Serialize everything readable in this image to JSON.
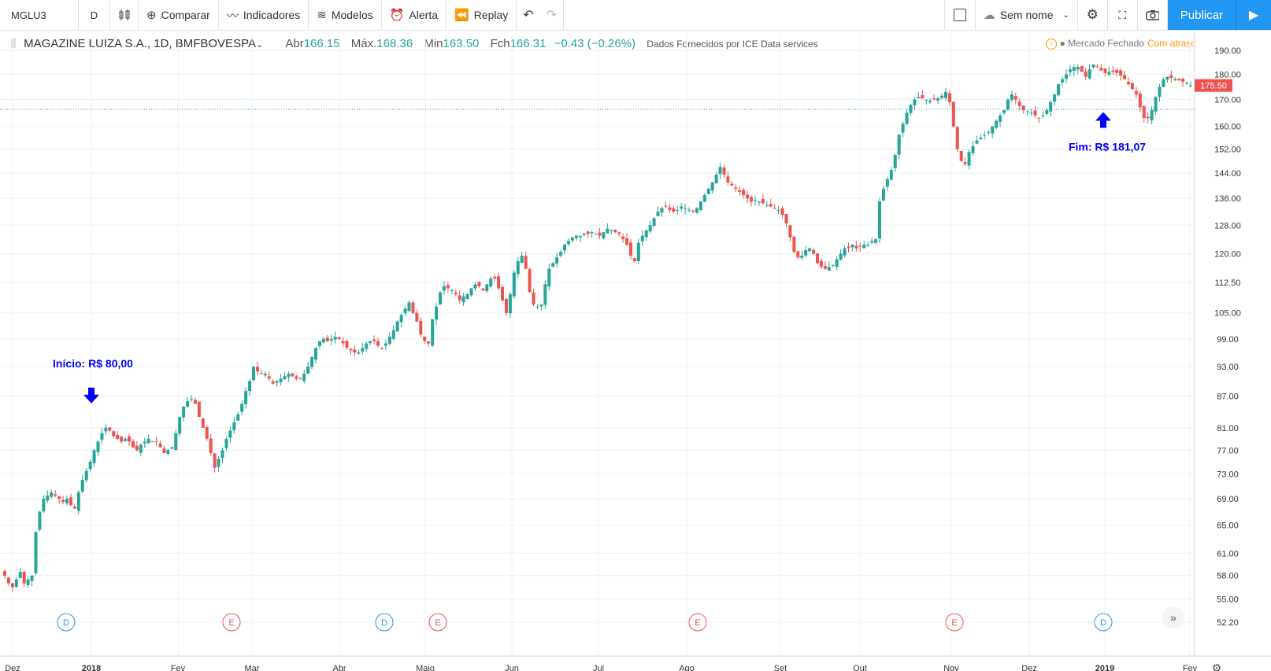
{
  "toolbar": {
    "symbol": "MGLU3",
    "interval": "D",
    "compare": "Comparar",
    "indicators": "Indicadores",
    "templates": "Modelos",
    "alert": "Alerta",
    "replay": "Replay",
    "layout_name": "Sem nome",
    "publish": "Publicar"
  },
  "legend": {
    "title": "MAGAZINE LUIZA S.A., 1D, BMFBOVESPA",
    "open_label": "Abr",
    "open": "166.15",
    "high_label": "Máx.",
    "high": "168.36",
    "low_label": "Min",
    "low": "163.50",
    "close_label": "Fch",
    "close": "166.31",
    "change": "−0.43 (−0.26%)",
    "source": "Dados Fornecidos por ICE Data services"
  },
  "status": {
    "market": "Mercado Fechado",
    "delay": "Com atraso"
  },
  "colors": {
    "up": "#26a69a",
    "down": "#ef5350",
    "annotation": "#0000ff",
    "accent": "#2196f3"
  },
  "chart_data": {
    "type": "candlestick",
    "y_scale": "log",
    "ylim": [
      51.5,
      194
    ],
    "y_ticks": [
      "190.00",
      "180.00",
      "170.00",
      "160.00",
      "152.00",
      "144.00",
      "136.00",
      "128.00",
      "120.00",
      "112.50",
      "105.00",
      "99.00",
      "93.00",
      "87.00",
      "81.00",
      "77.00",
      "73.00",
      "69.00",
      "65.00",
      "61.00",
      "58.00",
      "55.00",
      "52.20"
    ],
    "x_ticks": [
      "Dez",
      "2018",
      "Fev",
      "Mar",
      "Abr",
      "Maio",
      "Jun",
      "Jul",
      "Ago",
      "Set",
      "Out",
      "Nov",
      "Dez",
      "2019",
      "Fev"
    ],
    "last_price_label": "175.50",
    "last_price": 175.5,
    "reference_line": 166.31,
    "close_series": [
      58,
      57,
      56.5,
      57.5,
      58.5,
      57,
      57.5,
      58,
      64,
      67,
      69,
      69.5,
      70,
      69.5,
      69,
      68.5,
      69,
      68,
      67.5,
      70,
      72,
      73.5,
      75,
      77,
      78.5,
      80,
      81,
      80.5,
      79.5,
      79,
      78.5,
      79,
      78.5,
      77.5,
      77,
      78,
      78.5,
      79,
      78.5,
      78.5,
      77.5,
      76.5,
      77,
      77.5,
      80,
      83,
      85,
      86,
      86.5,
      85.5,
      83,
      81,
      79,
      76.5,
      74,
      75.5,
      77,
      79,
      80.5,
      82,
      83.5,
      85.5,
      88,
      90,
      93,
      92,
      91.5,
      91.5,
      90.5,
      89.5,
      90,
      90.5,
      91,
      91.5,
      91,
      90.5,
      90.5,
      91.5,
      93,
      95,
      97,
      98.5,
      99,
      98.5,
      99,
      99.5,
      99,
      98,
      97,
      96.5,
      96,
      96,
      97,
      98,
      98.5,
      98.5,
      97.5,
      97,
      98,
      99.5,
      101,
      103,
      104.5,
      106,
      107.5,
      105,
      103,
      100,
      98.5,
      98,
      103.5,
      106.5,
      110,
      111.5,
      111,
      110.5,
      109.5,
      108,
      109,
      109.5,
      111,
      112,
      111.5,
      110.5,
      112,
      113.5,
      113.5,
      111,
      108,
      105,
      109.5,
      115,
      118,
      119.5,
      116,
      110,
      107,
      106.5,
      107,
      112,
      116,
      117.5,
      119,
      120.5,
      122.5,
      123.5,
      124.5,
      125,
      125,
      125.5,
      125.5,
      126,
      125.5,
      125,
      126,
      127,
      126.5,
      126,
      125.5,
      124,
      122.5,
      119.5,
      118,
      123,
      125,
      126.5,
      128,
      130,
      132,
      133,
      133.5,
      132.5,
      132,
      132.5,
      133.5,
      133,
      132.5,
      132,
      133,
      135,
      137,
      139,
      141,
      143.5,
      146,
      143.5,
      141,
      140,
      139,
      138,
      137,
      136,
      135,
      135.5,
      135,
      134.5,
      134,
      133.5,
      133,
      132.5,
      131,
      128.5,
      124.5,
      120.5,
      119,
      119.5,
      121,
      121.5,
      120,
      117.5,
      116.5,
      116,
      116.5,
      117,
      118.5,
      120,
      121.5,
      121.5,
      122.5,
      121.5,
      122,
      122.5,
      122.5,
      123.5,
      124,
      135,
      139,
      142,
      145,
      150,
      157,
      161,
      165,
      168,
      170,
      171,
      170.5,
      170,
      169.5,
      170,
      170.5,
      171.5,
      173,
      169,
      160,
      152,
      148,
      147,
      151,
      153,
      155,
      156,
      157,
      158,
      160,
      162,
      164,
      166,
      170,
      172,
      170,
      167.5,
      166,
      165.5,
      165,
      164,
      163,
      164,
      166,
      169,
      172,
      176,
      178,
      180,
      182,
      183,
      183,
      181,
      179,
      182,
      184,
      183,
      181.5,
      180.5,
      181,
      181,
      180.5,
      179.5,
      178,
      176,
      174,
      172,
      167,
      163,
      163,
      166,
      171,
      175,
      178,
      179,
      178.5,
      178,
      177.5,
      177,
      176.5,
      175.5
    ],
    "annotations": [
      {
        "text": "Início: R$ 80,00",
        "arrow": "down",
        "price": 80.0
      },
      {
        "text": "Fim: R$ 181,07",
        "arrow": "up",
        "price": 181.07
      }
    ],
    "events": [
      "D",
      "E",
      "D",
      "E",
      "E",
      "E",
      "D"
    ]
  }
}
